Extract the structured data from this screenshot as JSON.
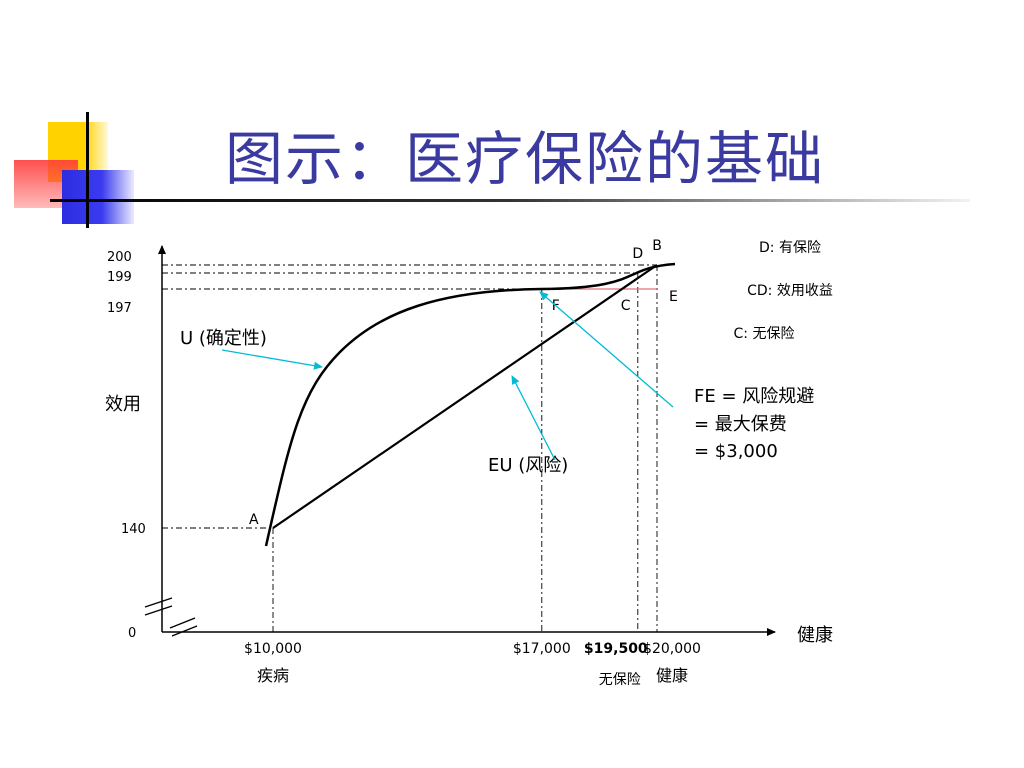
{
  "slide": {
    "title": "图示：医疗保险的基础"
  },
  "chart_data": {
    "type": "line",
    "title": "",
    "xlabel": "健康",
    "ylabel": "效用",
    "xlim": [
      0,
      20000
    ],
    "ylim": [
      0,
      200
    ],
    "x_ticks": [
      {
        "value": 10000,
        "label": "$10,000",
        "sub": "疾病",
        "bold": false
      },
      {
        "value": 17000,
        "label": "$17,000",
        "sub": "",
        "bold": false
      },
      {
        "value": 19500,
        "label": "$19,500",
        "sub": "无保险",
        "bold": true
      },
      {
        "value": 20000,
        "label": "$20,000",
        "sub": "健康",
        "bold": false
      }
    ],
    "y_ticks": [
      {
        "value": 0,
        "label": "0"
      },
      {
        "value": 140,
        "label": "140"
      },
      {
        "value": 197,
        "label": "197"
      },
      {
        "value": 199,
        "label": "199"
      },
      {
        "value": 200,
        "label": "200"
      }
    ],
    "series": [
      {
        "name": "U (确定性)",
        "kind": "curve",
        "points": [
          [
            10000,
            140
          ],
          [
            17000,
            197
          ],
          [
            20000,
            200
          ]
        ]
      },
      {
        "name": "EU (风险)",
        "kind": "line",
        "points": [
          [
            10000,
            140
          ],
          [
            20000,
            200
          ]
        ]
      }
    ],
    "points": [
      {
        "label": "A",
        "x": 10000,
        "y": 140
      },
      {
        "label": "F",
        "x": 17000,
        "y": 197
      },
      {
        "label": "C",
        "x": 19500,
        "y": 197
      },
      {
        "label": "D",
        "x": 19500,
        "y": 199
      },
      {
        "label": "B",
        "x": 20000,
        "y": 200
      },
      {
        "label": "E",
        "x": 20000,
        "y": 197
      }
    ],
    "legend_notes": [
      "D: 有保险",
      "CD: 效用收益",
      "C: 无保险"
    ],
    "annotations": {
      "u_label": "U (确定性)",
      "eu_label": "EU (风险)",
      "fe_lines": [
        "FE = 风险规避",
        "= 最大保费",
        "= $3,000"
      ]
    },
    "colors": {
      "axis": "#000000",
      "curve": "#000000",
      "arrow": "#00bcd4",
      "fe_segment": "#e0707a",
      "guide": "#000000"
    }
  }
}
